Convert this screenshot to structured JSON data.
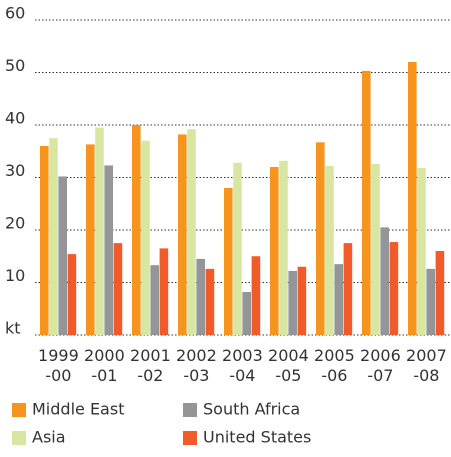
{
  "chart_data": {
    "type": "bar",
    "categories": [
      "1999\n-00",
      "2000\n-01",
      "2001\n-02",
      "2002\n-03",
      "2003\n-04",
      "2004\n-05",
      "2005\n-06",
      "2006\n-07",
      "2007\n-08"
    ],
    "series": [
      {
        "name": "Middle East",
        "color": "#f7941d",
        "values": [
          36,
          36.3,
          40,
          38.2,
          28,
          32,
          36.7,
          50.3,
          52
        ]
      },
      {
        "name": "Asia",
        "color": "#d7e7a1",
        "values": [
          37.5,
          39.5,
          37,
          39.2,
          32.8,
          33.2,
          32.2,
          32.6,
          31.8
        ]
      },
      {
        "name": "South Africa",
        "color": "#939598",
        "values": [
          30.2,
          32.3,
          13.3,
          14.5,
          8.2,
          12.2,
          13.5,
          20.5,
          12.6
        ]
      },
      {
        "name": "United States",
        "color": "#f15a29",
        "values": [
          15.4,
          17.5,
          16.5,
          12.6,
          15,
          13,
          17.5,
          17.7,
          16
        ]
      }
    ],
    "ylim": [
      0,
      60
    ],
    "yticks": [
      {
        "value": 0,
        "label": "kt"
      },
      10,
      20,
      30,
      40,
      50,
      60
    ],
    "grid": true
  }
}
